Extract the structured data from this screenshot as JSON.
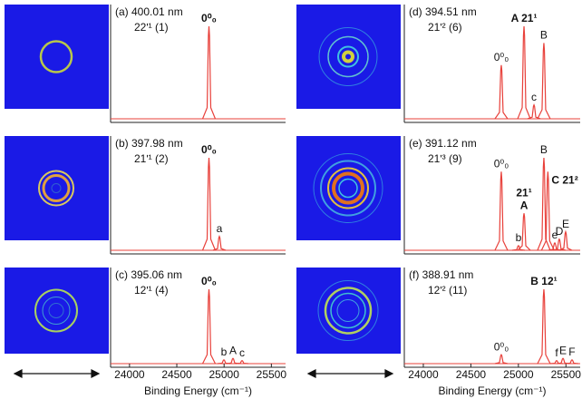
{
  "chart_data": [
    {
      "type": "line",
      "title": "(a) 400.01 nm",
      "subtitle": "22ʹ¹ (1)",
      "color": "#e8403a",
      "xlim": [
        23800,
        25650
      ],
      "x": [
        24840
      ],
      "values": [
        1.0
      ],
      "peak_labels": [
        "0⁰₀"
      ],
      "bold_labels": [
        true
      ]
    },
    {
      "type": "line",
      "title": "(b) 397.98 nm",
      "subtitle": "21ʹ¹ (2)",
      "color": "#e8403a",
      "xlim": [
        23800,
        25650
      ],
      "x": [
        24840,
        24950
      ],
      "values": [
        1.0,
        0.15
      ],
      "peak_labels": [
        "0⁰₀",
        "a"
      ],
      "bold_labels": [
        true,
        false
      ]
    },
    {
      "type": "line",
      "title": "(c) 395.06 nm",
      "subtitle": "12ʹ¹ (4)",
      "color": "#e8403a",
      "xlim": [
        23800,
        25650
      ],
      "xticks": [
        24000,
        24500,
        25000,
        25500
      ],
      "x_label": "Binding Energy (cm⁻¹)",
      "x": [
        24840,
        24998,
        25094,
        25190
      ],
      "values": [
        1.0,
        0.05,
        0.07,
        0.04
      ],
      "peak_labels": [
        "0⁰₀",
        "b",
        "A",
        "c"
      ],
      "bold_labels": [
        true,
        false,
        false,
        false
      ]
    },
    {
      "type": "line",
      "title": "(d) 394.51 nm",
      "subtitle": "21ʹ² (6)",
      "color": "#e8403a",
      "xlim": [
        23800,
        25650
      ],
      "x": [
        24820,
        25059,
        25164,
        25268
      ],
      "values": [
        0.58,
        1.0,
        0.15,
        0.82
      ],
      "peak_labels": [
        "0⁰₀",
        "A 21¹",
        "c",
        "B"
      ],
      "bold_labels": [
        false,
        true,
        false,
        false
      ]
    },
    {
      "type": "line",
      "title": "(e) 391.12 nm",
      "subtitle": "21ʹ³ (9)",
      "color": "#e8403a",
      "xlim": [
        23800,
        25650
      ],
      "x": [
        24820,
        25001,
        25059,
        25268,
        25310,
        25383,
        25430,
        25497
      ],
      "values": [
        0.85,
        0.05,
        0.4,
        1.0,
        0.85,
        0.08,
        0.12,
        0.2
      ],
      "peak_labels": [
        "0⁰₀",
        "b",
        [
          "21¹",
          "A"
        ],
        "B",
        "C 21²",
        "e",
        "D",
        "E"
      ],
      "bold_labels": [
        false,
        false,
        true,
        false,
        true,
        false,
        false,
        false
      ]
    },
    {
      "type": "line",
      "title": "(f) 388.91 nm",
      "subtitle": "12ʹ² (11)",
      "color": "#e8403a",
      "xlim": [
        23800,
        25650
      ],
      "xticks": [
        24000,
        24500,
        25000,
        25500
      ],
      "x_label": "Binding Energy (cm⁻¹)",
      "x": [
        24820,
        25268,
        25402,
        25469,
        25564
      ],
      "values": [
        0.12,
        1.0,
        0.04,
        0.07,
        0.05
      ],
      "peak_labels": [
        "0⁰₀",
        "B 12¹",
        "f",
        "E",
        "F"
      ],
      "bold_labels": [
        false,
        true,
        false,
        false,
        false
      ]
    }
  ]
}
